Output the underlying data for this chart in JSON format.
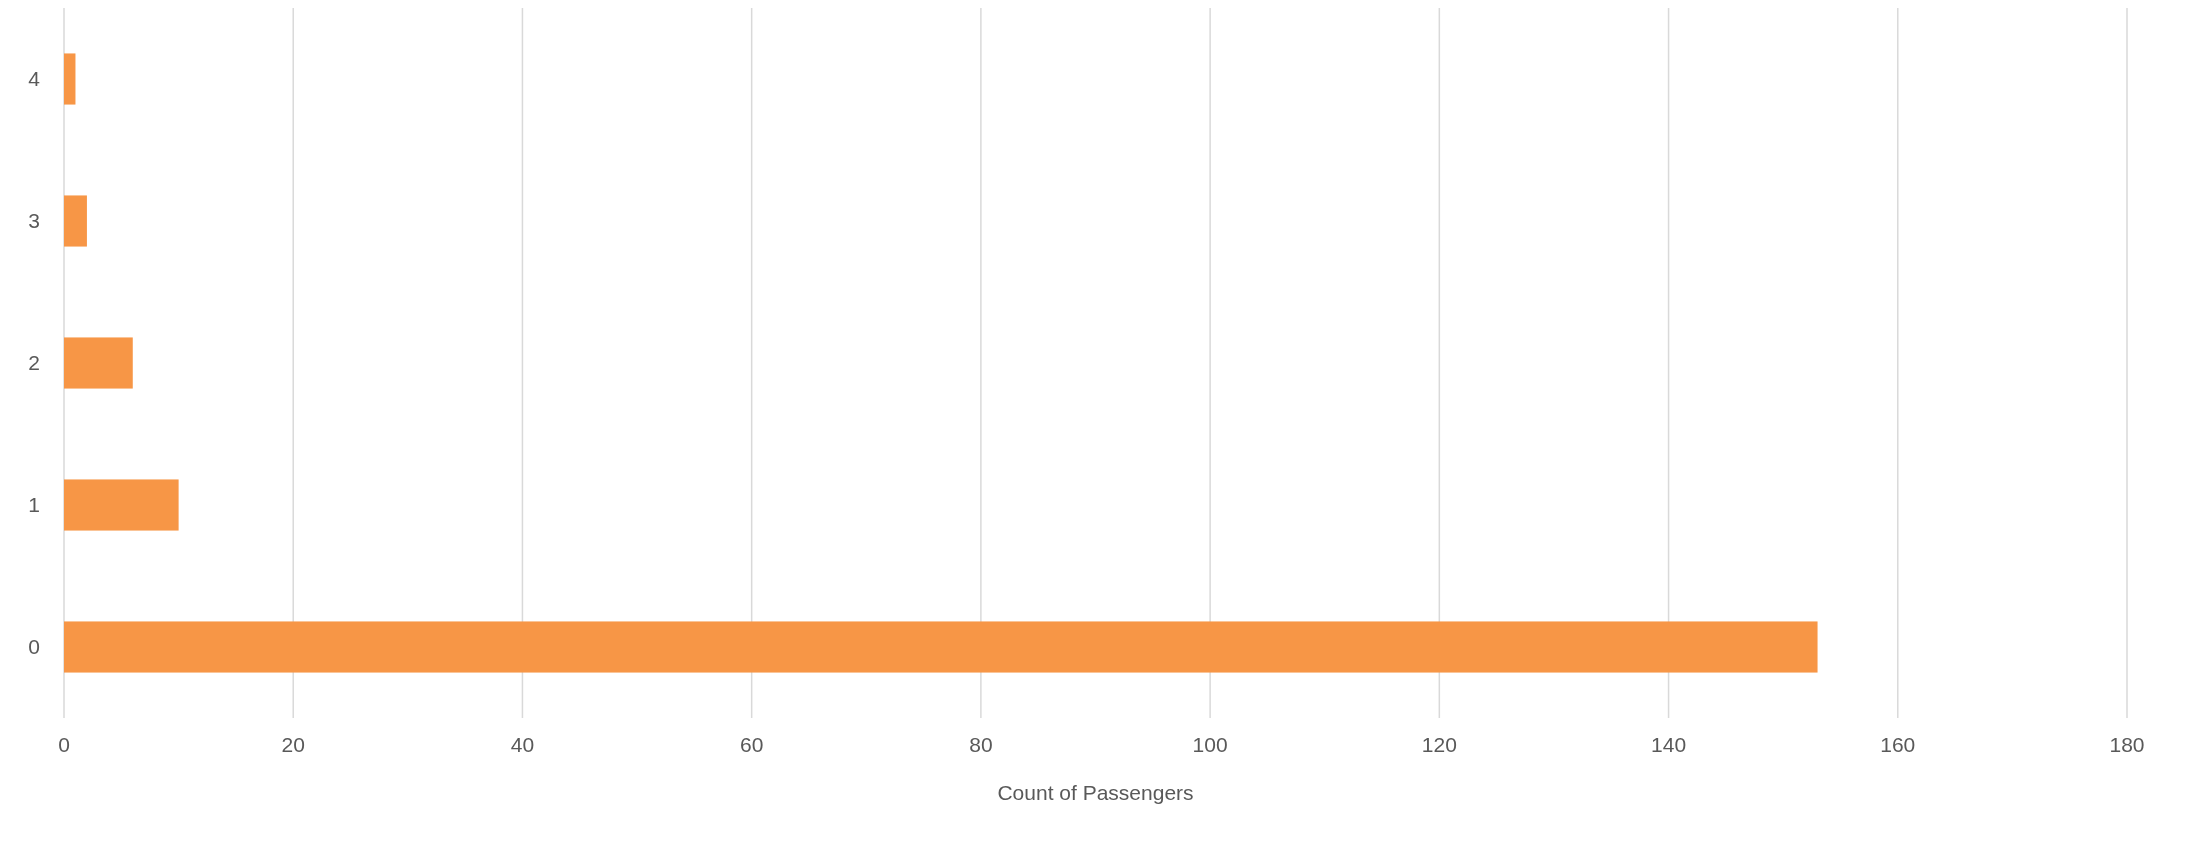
{
  "chart_data": {
    "type": "bar",
    "orientation": "horizontal",
    "xlabel": "Count of Passengers",
    "categories": [
      "4",
      "3",
      "2",
      "1",
      "0"
    ],
    "values": [
      1,
      2,
      6,
      10,
      153
    ],
    "color": "#f79646",
    "xlim": [
      0,
      180
    ],
    "xticks": [
      0,
      20,
      40,
      60,
      80,
      100,
      120,
      140,
      160,
      180
    ],
    "grid": "x"
  }
}
